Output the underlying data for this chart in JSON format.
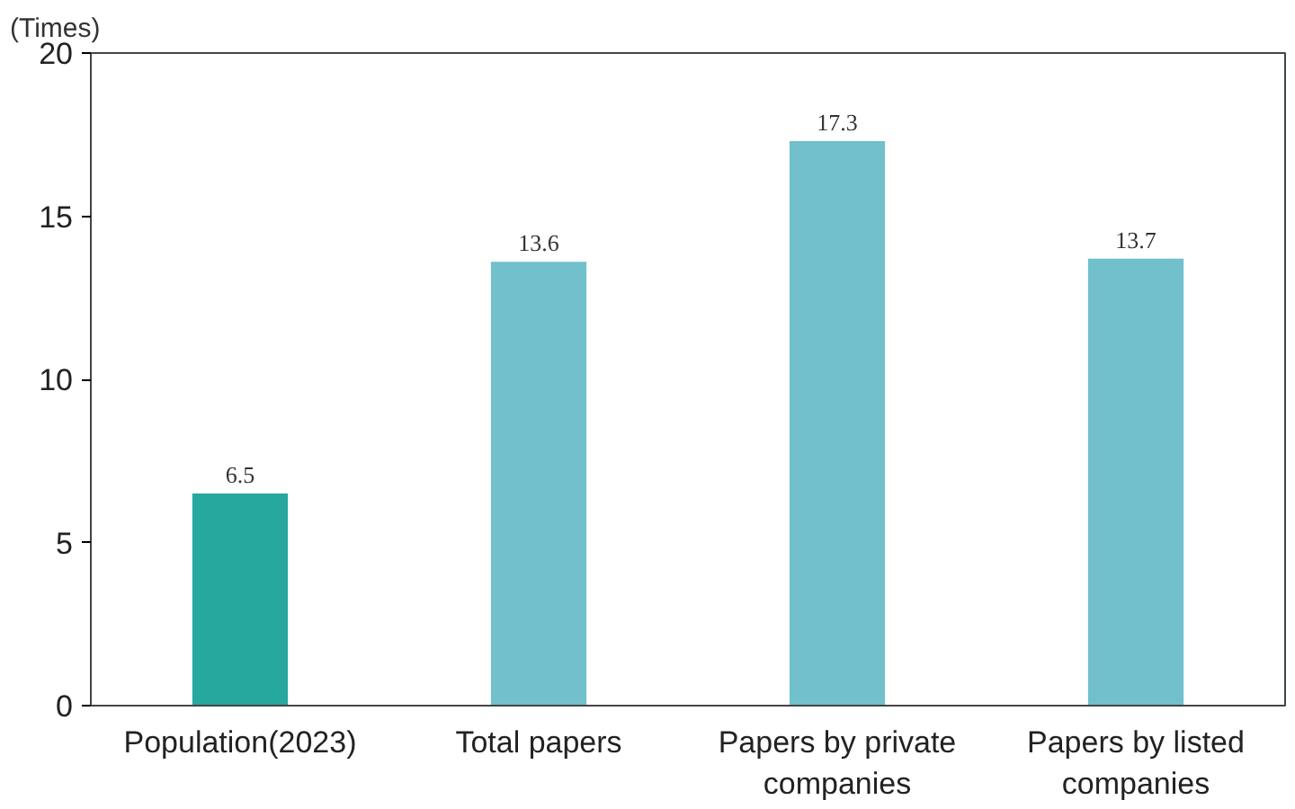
{
  "chart_data": {
    "type": "bar",
    "ylabel": "(Times)",
    "categories": [
      "Population(2023)",
      "Total papers",
      "Papers by private companies",
      "Papers by listed companies"
    ],
    "values": [
      6.5,
      13.6,
      17.3,
      13.7
    ],
    "colors": [
      "#26a89e",
      "#71c0cc",
      "#71c0cc",
      "#71c0cc"
    ],
    "ylim": [
      0,
      20
    ],
    "yticks": [
      0,
      5,
      10,
      15,
      20
    ],
    "grid": false,
    "data_labels": true
  }
}
